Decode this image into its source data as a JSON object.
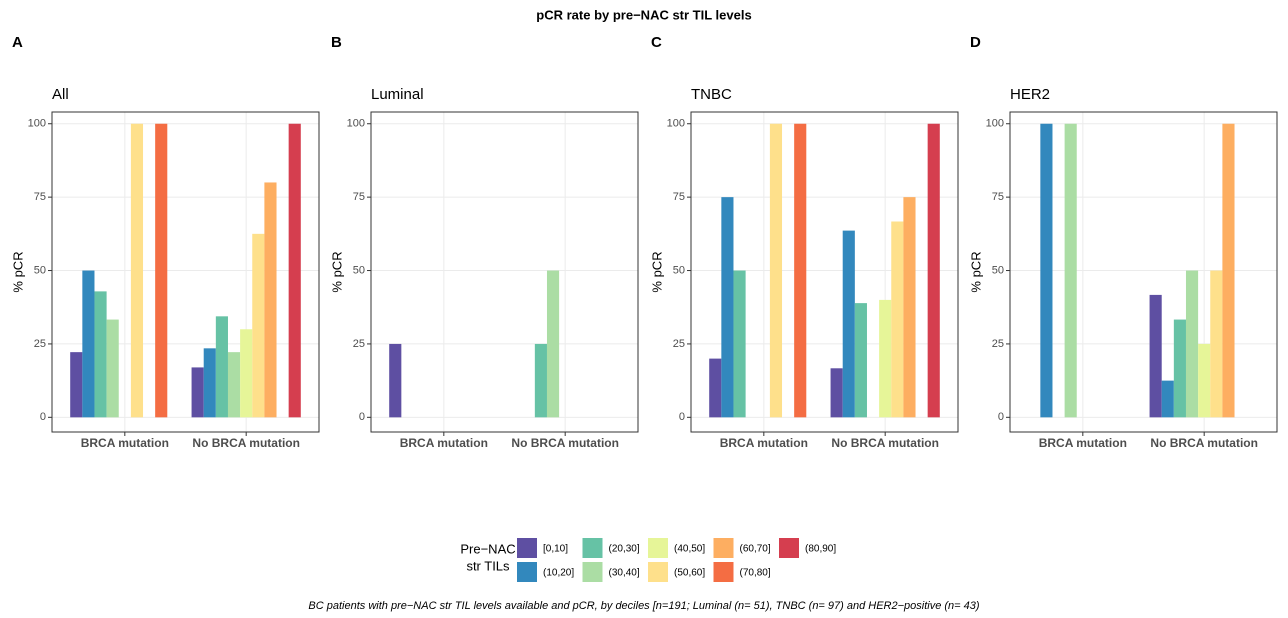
{
  "title": "pCR rate by pre−NAC str TIL levels",
  "legend_title": [
    "Pre−NAC",
    "str TILs"
  ],
  "caption": "BC patients with pre−NAC str TIL levels available and pCR, by deciles [n=191; Luminal (n= 51), TNBC (n= 97) and HER2−positive (n= 43)",
  "chart_data": [
    {
      "type": "bar",
      "panel": "A",
      "title": "All",
      "y_label": "% pCR",
      "categories": [
        "BRCA mutation",
        "No BRCA mutation"
      ],
      "ylim": [
        -5,
        104
      ],
      "yticks": [
        0,
        25,
        50,
        75,
        100
      ],
      "grid": true,
      "series": [
        {
          "name": "[0,10]",
          "color": "#5E4FA2",
          "values": [
            22.2,
            17
          ]
        },
        {
          "name": "(10,20]",
          "color": "#3288BD",
          "values": [
            50,
            23.5
          ]
        },
        {
          "name": "(20,30]",
          "color": "#66C2A5",
          "values": [
            42.9,
            34.4
          ]
        },
        {
          "name": "(30,40]",
          "color": "#ABDDA4",
          "values": [
            33.3,
            22.2
          ]
        },
        {
          "name": "(40,50]",
          "color": "#E6F598",
          "values": [
            null,
            30
          ]
        },
        {
          "name": "(50,60]",
          "color": "#FEE08B",
          "values": [
            100,
            62.5
          ]
        },
        {
          "name": "(60,70]",
          "color": "#FDAE61",
          "values": [
            null,
            80
          ]
        },
        {
          "name": "(70,80]",
          "color": "#F46D43",
          "values": [
            100,
            null
          ]
        },
        {
          "name": "(80,90]",
          "color": "#D53E4F",
          "values": [
            0,
            100
          ]
        }
      ]
    },
    {
      "type": "bar",
      "panel": "B",
      "title": "Luminal",
      "y_label": "% pCR",
      "categories": [
        "BRCA mutation",
        "No BRCA mutation"
      ],
      "ylim": [
        -5,
        104
      ],
      "yticks": [
        0,
        25,
        50,
        75,
        100
      ],
      "grid": true,
      "series": [
        {
          "name": "[0,10]",
          "color": "#5E4FA2",
          "values": [
            25,
            0
          ]
        },
        {
          "name": "(10,20]",
          "color": "#3288BD",
          "values": [
            0,
            0
          ]
        },
        {
          "name": "(20,30]",
          "color": "#66C2A5",
          "values": [
            0,
            25
          ]
        },
        {
          "name": "(30,40]",
          "color": "#ABDDA4",
          "values": [
            null,
            50
          ]
        },
        {
          "name": "(40,50]",
          "color": "#E6F598",
          "values": [
            null,
            null
          ]
        },
        {
          "name": "(50,60]",
          "color": "#FEE08B",
          "values": [
            null,
            null
          ]
        },
        {
          "name": "(60,70]",
          "color": "#FDAE61",
          "values": [
            0,
            0
          ]
        },
        {
          "name": "(70,80]",
          "color": "#F46D43",
          "values": [
            0,
            null
          ]
        },
        {
          "name": "(80,90]",
          "color": "#D53E4F",
          "values": [
            null,
            null
          ]
        }
      ]
    },
    {
      "type": "bar",
      "panel": "C",
      "title": "TNBC",
      "y_label": "% pCR",
      "categories": [
        "BRCA mutation",
        "No BRCA mutation"
      ],
      "ylim": [
        -5,
        104
      ],
      "yticks": [
        0,
        25,
        50,
        75,
        100
      ],
      "grid": true,
      "series": [
        {
          "name": "[0,10]",
          "color": "#5E4FA2",
          "values": [
            20,
            16.7
          ]
        },
        {
          "name": "(10,20]",
          "color": "#3288BD",
          "values": [
            75,
            63.6
          ]
        },
        {
          "name": "(20,30]",
          "color": "#66C2A5",
          "values": [
            50,
            38.9
          ]
        },
        {
          "name": "(30,40]",
          "color": "#ABDDA4",
          "values": [
            null,
            null
          ]
        },
        {
          "name": "(40,50]",
          "color": "#E6F598",
          "values": [
            null,
            40
          ]
        },
        {
          "name": "(50,60]",
          "color": "#FEE08B",
          "values": [
            100,
            66.7
          ]
        },
        {
          "name": "(60,70]",
          "color": "#FDAE61",
          "values": [
            null,
            75
          ]
        },
        {
          "name": "(70,80]",
          "color": "#F46D43",
          "values": [
            100,
            null
          ]
        },
        {
          "name": "(80,90]",
          "color": "#D53E4F",
          "values": [
            0,
            100
          ]
        }
      ]
    },
    {
      "type": "bar",
      "panel": "D",
      "title": "HER2",
      "y_label": "% pCR",
      "categories": [
        "BRCA mutation",
        "No BRCA mutation"
      ],
      "ylim": [
        -5,
        104
      ],
      "yticks": [
        0,
        25,
        50,
        75,
        100
      ],
      "grid": true,
      "series": [
        {
          "name": "[0,10]",
          "color": "#5E4FA2",
          "values": [
            0,
            41.7
          ]
        },
        {
          "name": "(10,20]",
          "color": "#3288BD",
          "values": [
            100,
            12.5
          ]
        },
        {
          "name": "(20,30]",
          "color": "#66C2A5",
          "values": [
            0,
            33.3
          ]
        },
        {
          "name": "(30,40]",
          "color": "#ABDDA4",
          "values": [
            100,
            50
          ]
        },
        {
          "name": "(40,50]",
          "color": "#E6F598",
          "values": [
            null,
            25
          ]
        },
        {
          "name": "(50,60]",
          "color": "#FEE08B",
          "values": [
            0,
            50
          ]
        },
        {
          "name": "(60,70]",
          "color": "#FDAE61",
          "values": [
            0,
            100
          ]
        },
        {
          "name": "(70,80]",
          "color": "#F46D43",
          "values": [
            null,
            null
          ]
        },
        {
          "name": "(80,90]",
          "color": "#D53E4F",
          "values": [
            null,
            null
          ]
        }
      ]
    }
  ]
}
